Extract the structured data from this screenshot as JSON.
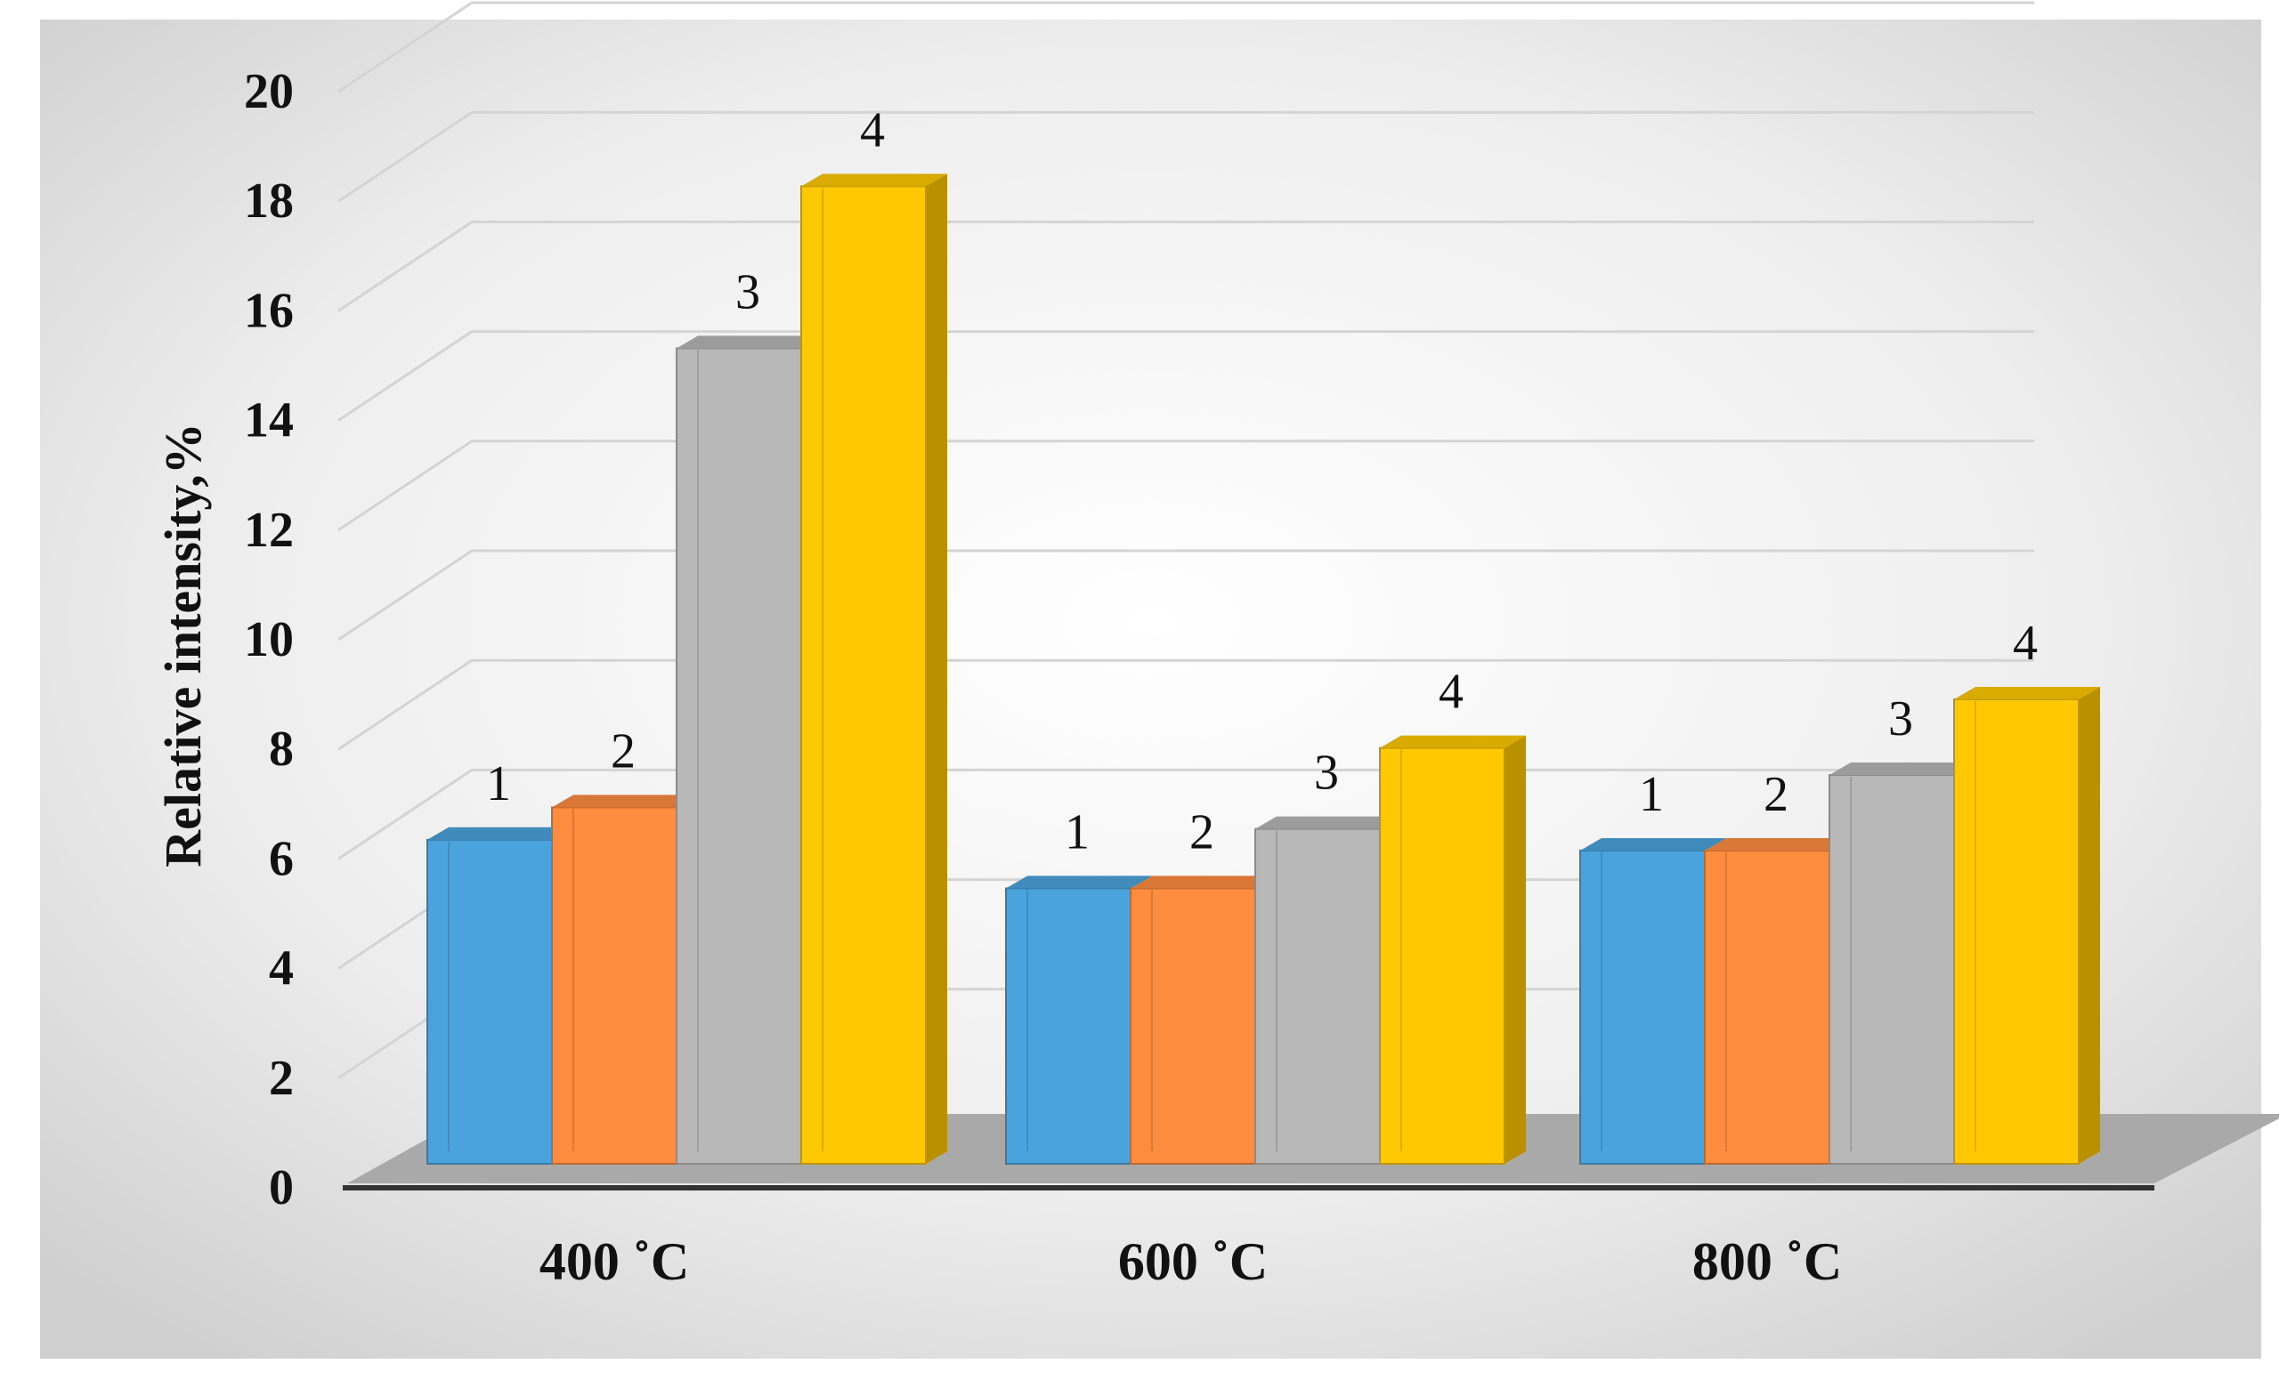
{
  "chart_data": {
    "type": "bar",
    "title": "",
    "xlabel": "",
    "ylabel": "Relative intensity,%",
    "categories": [
      "400 ˚C",
      "600 ˚C",
      "800 ˚C"
    ],
    "series": [
      {
        "label": "1",
        "values": [
          6.0,
          5.1,
          5.8
        ],
        "color": "#4BA3DD"
      },
      {
        "label": "2",
        "values": [
          6.6,
          5.1,
          5.8
        ],
        "color": "#FF8C3F"
      },
      {
        "label": "3",
        "values": [
          15.1,
          6.2,
          7.2
        ],
        "color": "#B8B8B8"
      },
      {
        "label": "4",
        "values": [
          18.1,
          7.7,
          8.6
        ],
        "color": "#FFC800"
      }
    ],
    "ylim": [
      0,
      20
    ],
    "yticks": [
      0,
      2,
      4,
      6,
      8,
      10,
      12,
      14,
      16,
      18,
      20
    ],
    "grid": true,
    "legend": "none",
    "style": "3d-column"
  }
}
